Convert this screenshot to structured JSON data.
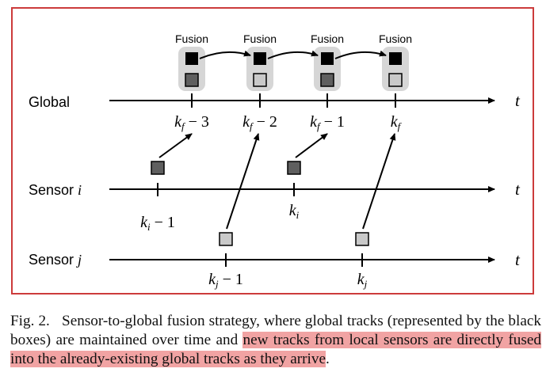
{
  "colors": {
    "frame_border": "#cc3b3b",
    "fusion_bg": "#d6d6d6",
    "global_box": "#000000",
    "sensor_i_box": "#5f5f5f",
    "sensor_j_box": "#c9c9c9",
    "highlight": "#f1a3a3"
  },
  "diagram": {
    "fusion_label": "Fusion",
    "axis_label": "t",
    "rows": {
      "global": "Global",
      "sensor_i_prefix": "Sensor ",
      "sensor_i_var": "i",
      "sensor_j_prefix": "Sensor ",
      "sensor_j_var": "j"
    },
    "global_ticks": [
      "k_f − 3",
      "k_f − 2",
      "k_f − 1",
      "k_f"
    ],
    "sensor_i_ticks": [
      "k_i − 1",
      "k_i"
    ],
    "sensor_j_ticks": [
      "k_j − 1",
      "k_j"
    ]
  },
  "caption": {
    "fig_label": "Fig. 2.",
    "text_before": "Sensor-to-global fusion strategy, where global tracks (represented by the black boxes) are maintained over time and ",
    "text_highlighted": "new tracks from local sensors are directly fused into the already-existing global tracks as they arrive",
    "text_after": "."
  }
}
